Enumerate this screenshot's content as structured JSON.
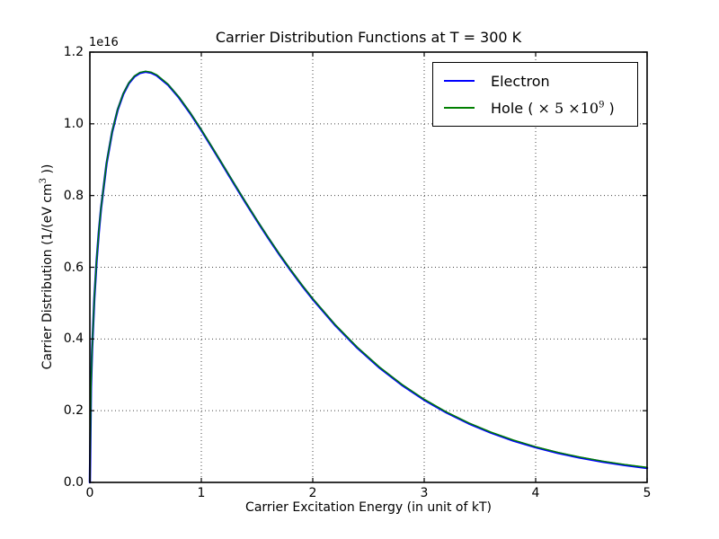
{
  "figure": {
    "title": "Carrier Distribution Functions at T = 300 K",
    "offset_label": "1e16",
    "xlabel": "Carrier Excitation Energy (in unit of kT)",
    "ylabel_prefix": "Carrier Distribution (1/(eV cm",
    "ylabel_sup": "3",
    "ylabel_suffix": " ))",
    "background_color": "#ffffff",
    "axis_color": "#000000",
    "grid_color": "#444444"
  },
  "legend": {
    "entries": [
      {
        "name": "electron",
        "label": "Electron",
        "color": "#0000ff"
      },
      {
        "name": "hole",
        "label_prefix": "Hole ( ",
        "label_math": "×  5 ×10",
        "label_sup": "9",
        "label_suffix": " )",
        "color": "#007f00"
      }
    ]
  },
  "chart_data": {
    "type": "line",
    "title": "Carrier Distribution Functions at T = 300 K",
    "xlabel": "Carrier Excitation Energy (in unit of kT)",
    "ylabel": "Carrier Distribution (1/(eV cm^3 ))",
    "xlim": [
      0,
      5
    ],
    "ylim": [
      0,
      1.2
    ],
    "y_unit_multiplier": "1e16",
    "grid": true,
    "grid_style": "dotted",
    "legend_position": "upper right",
    "xticks": {
      "values": [
        0,
        1,
        2,
        3,
        4,
        5
      ],
      "labels": [
        "0",
        "1",
        "2",
        "3",
        "4",
        "5"
      ]
    },
    "yticks": {
      "values": [
        0,
        0.2,
        0.4,
        0.6,
        0.8,
        1.0,
        1.2
      ],
      "labels": [
        "0.0",
        "0.2",
        "0.4",
        "0.6",
        "0.8",
        "1.0",
        "1.2"
      ]
    },
    "peak": {
      "x": 0.5,
      "y_in_1e16": 1.145
    },
    "x": [
      0,
      0.01,
      0.02,
      0.04,
      0.06,
      0.08,
      0.1,
      0.15,
      0.2,
      0.25,
      0.3,
      0.35,
      0.4,
      0.45,
      0.5,
      0.55,
      0.6,
      0.7,
      0.8,
      0.9,
      1.0,
      1.1,
      1.2,
      1.3,
      1.4,
      1.5,
      1.6,
      1.7,
      1.8,
      1.9,
      2.0,
      2.2,
      2.4,
      2.6,
      2.8,
      3.0,
      3.2,
      3.4,
      3.6,
      3.8,
      4.0,
      4.2,
      4.4,
      4.6,
      4.8,
      5.0
    ],
    "series": [
      {
        "name": "Electron",
        "color": "#0000ff",
        "values_in_1e16": [
          0,
          0.2643,
          0.3701,
          0.513,
          0.6159,
          0.697,
          0.7639,
          0.8899,
          0.9775,
          1.0395,
          1.0832,
          1.113,
          1.1318,
          1.1418,
          1.145,
          1.1423,
          1.1349,
          1.1092,
          1.0729,
          1.0297,
          0.9821,
          0.932,
          0.8808,
          0.8295,
          0.779,
          0.7296,
          0.6818,
          0.6359,
          0.5921,
          0.5504,
          0.511,
          0.4388,
          0.3752,
          0.3197,
          0.2717,
          0.2302,
          0.1947,
          0.1643,
          0.1384,
          0.1164,
          0.0978,
          0.082,
          0.0688,
          0.0576,
          0.0481,
          0.0402
        ]
      },
      {
        "name": "Hole ( × 5 ×10^9 )",
        "color": "#007f00",
        "scale_applied": "5e9",
        "values_in_1e16": [
          0,
          0.2643,
          0.3701,
          0.513,
          0.6159,
          0.697,
          0.7639,
          0.8899,
          0.9775,
          1.0395,
          1.0832,
          1.113,
          1.1318,
          1.1418,
          1.145,
          1.1423,
          1.1349,
          1.1092,
          1.0729,
          1.0297,
          0.9821,
          0.932,
          0.8808,
          0.8295,
          0.779,
          0.7296,
          0.6818,
          0.6359,
          0.5921,
          0.5504,
          0.511,
          0.4388,
          0.3752,
          0.3197,
          0.2717,
          0.2302,
          0.1947,
          0.1643,
          0.1384,
          0.1164,
          0.0978,
          0.082,
          0.0688,
          0.0576,
          0.0481,
          0.0402
        ]
      }
    ]
  }
}
